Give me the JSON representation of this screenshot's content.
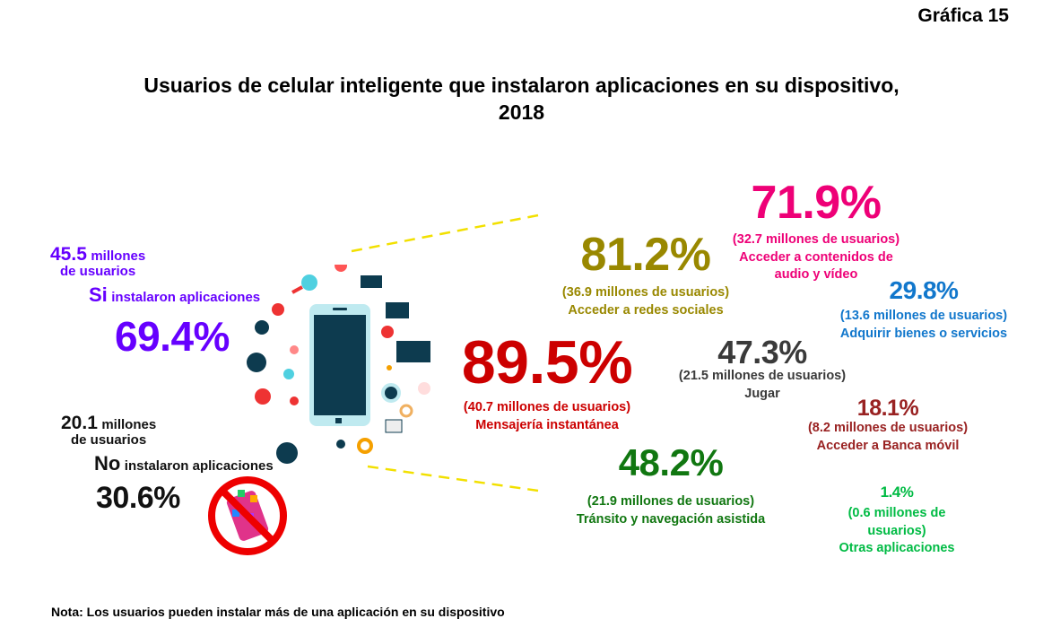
{
  "figure_number": "Gráfica 15",
  "title": "Usuarios de celular inteligente que instalaron aplicaciones en su dispositivo,",
  "title_year": "2018",
  "note": "Nota: Los usuarios pueden instalar más de una aplicación en su dispositivo",
  "installed": {
    "millions": "45.5",
    "millions_unit": "millones",
    "users_label": "de usuarios",
    "answer": "Si",
    "answer_label": "instalaron aplicaciones",
    "percent": "69.4%",
    "color": "#6600ff"
  },
  "not_installed": {
    "millions": "20.1",
    "millions_unit": "millones",
    "users_label": "de usuarios",
    "answer": "No",
    "answer_label": "instalaron aplicaciones",
    "percent": "30.6%",
    "color": "#111111"
  },
  "chart_data": {
    "type": "table",
    "title": "Usuarios de celular inteligente que instalaron aplicaciones en su dispositivo, 2018",
    "categories": [
      "Mensajería instantánea",
      "Acceder a redes sociales",
      "Acceder a contenidos de audio y vídeo",
      "Tránsito y navegación asistida",
      "Jugar",
      "Adquirir bienes o servicios",
      "Acceder a Banca móvil",
      "Otras aplicaciones"
    ],
    "items": [
      {
        "percent": "89.5%",
        "value": 89.5,
        "users": "(40.7 millones de usuarios)",
        "label": "Mensajería instantánea",
        "color": "#cc0000"
      },
      {
        "percent": "81.2%",
        "value": 81.2,
        "users": "(36.9 millones de usuarios)",
        "label": "Acceder a redes sociales",
        "color": "#998800"
      },
      {
        "percent": "71.9%",
        "value": 71.9,
        "users": "(32.7 millones de usuarios)",
        "label": "Acceder a contenidos de audio y vídeo",
        "color": "#ee0077"
      },
      {
        "percent": "48.2%",
        "value": 48.2,
        "users": "(21.9 millones de usuarios)",
        "label": "Tránsito y navegación asistida",
        "color": "#117711"
      },
      {
        "percent": "47.3%",
        "value": 47.3,
        "users": "(21.5 millones de usuarios)",
        "label": "Jugar",
        "color": "#3a3a3a"
      },
      {
        "percent": "29.8%",
        "value": 29.8,
        "users": "(13.6 millones de usuarios)",
        "label": "Adquirir bienes o servicios",
        "color": "#1177cc"
      },
      {
        "percent": "18.1%",
        "value": 18.1,
        "users": "(8.2 millones de usuarios)",
        "label": "Acceder a Banca móvil",
        "color": "#992222"
      },
      {
        "percent": "1.4%",
        "value": 1.4,
        "users": "(0.6 millones de usuarios)",
        "label": "Otras aplicaciones",
        "color": "#00bb44"
      }
    ]
  }
}
